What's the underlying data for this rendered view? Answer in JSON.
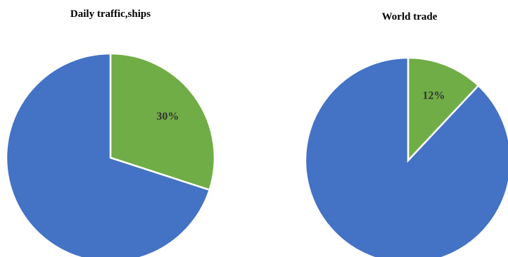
{
  "chart_data": [
    {
      "type": "pie",
      "title": "Daily traffic,ships",
      "slices": [
        {
          "value": 70,
          "color": "#4472c4",
          "label": ""
        },
        {
          "value": 30,
          "color": "#70ad47",
          "label": "30%"
        }
      ]
    },
    {
      "type": "pie",
      "title": "World trade",
      "slices": [
        {
          "value": 88,
          "color": "#4472c4",
          "label": ""
        },
        {
          "value": 12,
          "color": "#70ad47",
          "label": "12%"
        }
      ]
    }
  ]
}
